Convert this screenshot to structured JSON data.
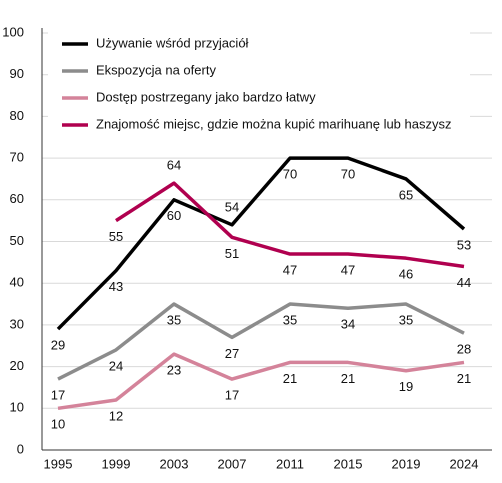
{
  "chart_data": {
    "type": "line",
    "categories": [
      "1995",
      "1999",
      "2003",
      "2007",
      "2011",
      "2015",
      "2019",
      "2024"
    ],
    "series": [
      {
        "name": "Używanie wśród przyjaciół",
        "color": "#000000",
        "values": [
          29,
          43,
          60,
          54,
          70,
          70,
          65,
          53
        ]
      },
      {
        "name": "Ekspozycja na oferty",
        "color": "#8c8c8c",
        "values": [
          17,
          24,
          35,
          27,
          35,
          34,
          35,
          28
        ]
      },
      {
        "name": "Dostęp postrzegany jako bardzo łatwy",
        "color": "#d4839a",
        "values": [
          10,
          12,
          23,
          17,
          21,
          21,
          19,
          21
        ]
      },
      {
        "name": "Znajomość miejsc, gdzie można kupić marihuanę lub haszysz",
        "color": "#b0004f",
        "values": [
          null,
          55,
          64,
          51,
          47,
          47,
          46,
          44
        ]
      }
    ],
    "ylim": [
      0,
      100
    ],
    "yticks": [
      0,
      10,
      20,
      30,
      40,
      50,
      60,
      70,
      80,
      90,
      100
    ],
    "grid": true,
    "legend": "top-left"
  }
}
